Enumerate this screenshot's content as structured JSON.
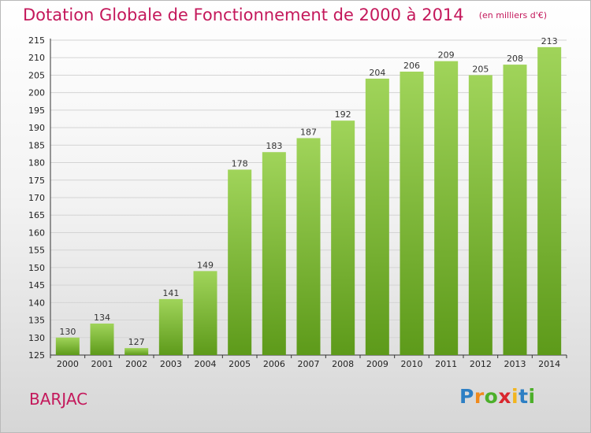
{
  "title": "Dotation Globale de Fonctionnement de 2000 à 2014",
  "subtitle": "(en milliers d'€)",
  "place": "BARJAC",
  "brand": {
    "text": "Proxiti",
    "letter_colors": [
      "#2d7fc4",
      "#f08a1c",
      "#4caf2a",
      "#d9262e",
      "#f2b51e",
      "#2d7fc4",
      "#4caf2a"
    ]
  },
  "colors": {
    "title": "#c4185b",
    "bar_top": "#a0d45a",
    "bar_bottom": "#5d9a1a"
  },
  "chart_data": {
    "type": "bar",
    "categories": [
      "2000",
      "2001",
      "2002",
      "2003",
      "2004",
      "2005",
      "2006",
      "2007",
      "2008",
      "2009",
      "2010",
      "2011",
      "2012",
      "2013",
      "2014"
    ],
    "values": [
      130,
      134,
      127,
      141,
      149,
      178,
      183,
      187,
      192,
      204,
      206,
      209,
      205,
      208,
      213
    ],
    "ylim": [
      125,
      215
    ],
    "yticks": [
      125,
      130,
      135,
      140,
      145,
      150,
      155,
      160,
      165,
      170,
      175,
      180,
      185,
      190,
      195,
      200,
      205,
      210,
      215
    ],
    "grid": true,
    "data_labels": true,
    "title": "Dotation Globale de Fonctionnement de 2000 à 2014",
    "subtitle": "(en milliers d'€)",
    "xlabel": "",
    "ylabel": ""
  }
}
